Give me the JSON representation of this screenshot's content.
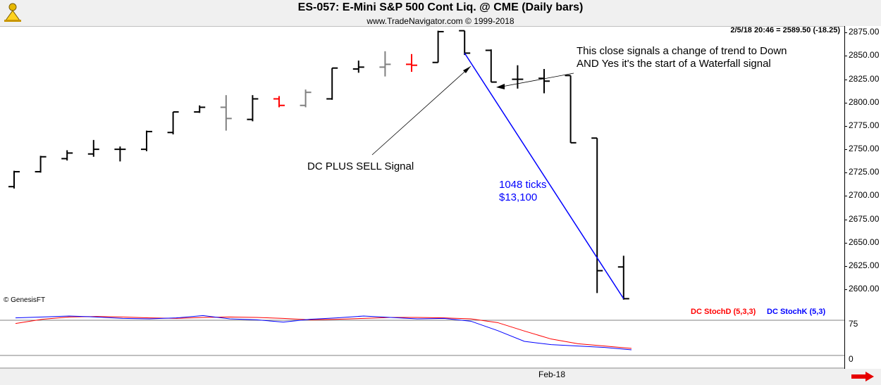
{
  "header": {
    "title": "ES-057:  E-Mini S&P 500 Cont Liq. @ CME  (Daily bars)",
    "subtitle": "www.TradeNavigator.com © 1999-2018"
  },
  "quote": "2/5/18 20:46 = 2589.50 (-18.25)",
  "copyright": "© GenesisFT",
  "annotations": {
    "trend_note_line1": "This close signals a change of trend to Down",
    "trend_note_line2": "AND Yes it's the start of a Waterfall signal",
    "signal_note": "DC PLUS SELL Signal",
    "ticks_note": "1048 ticks",
    "dollars_note": "$13,100"
  },
  "indicators": {
    "stochd_label": "DC StochD (5,3,3)",
    "stochk_label": "DC StochK (5,3)"
  },
  "colors": {
    "up_bar": "#000000",
    "signal_bar": "#ff0000",
    "neutral_bar": "#808080",
    "stochd": "#ff0000",
    "stochk": "#0000ff",
    "trend_line": "#0000ff"
  },
  "chart_data": [
    {
      "type": "ohlc",
      "title": "ES-057:  E-Mini S&P 500 Cont Liq. @ CME  (Daily bars)",
      "ylim": [
        2582,
        2882
      ],
      "yticks": [
        2600,
        2625,
        2650,
        2675,
        2700,
        2725,
        2750,
        2775,
        2800,
        2825,
        2850,
        2875
      ],
      "ytick_labels": [
        "2600.00",
        "2625.00",
        "2650.00",
        "2675.00",
        "2700.00",
        "2725.00",
        "2750.00",
        "2775.00",
        "2800.00",
        "2825.00",
        "2850.00",
        "2875.00"
      ],
      "x_labels": [
        "Feb-18"
      ],
      "bars": [
        {
          "o": 2710,
          "h": 2727,
          "l": 2708,
          "c": 2726,
          "color": "black"
        },
        {
          "o": 2726,
          "h": 2743,
          "l": 2725,
          "c": 2742,
          "color": "black"
        },
        {
          "o": 2740,
          "h": 2749,
          "l": 2738,
          "c": 2746,
          "color": "black"
        },
        {
          "o": 2745,
          "h": 2760,
          "l": 2742,
          "c": 2750,
          "color": "black"
        },
        {
          "o": 2750,
          "h": 2753,
          "l": 2737,
          "c": 2750,
          "color": "black"
        },
        {
          "o": 2750,
          "h": 2770,
          "l": 2748,
          "c": 2769,
          "color": "black"
        },
        {
          "o": 2768,
          "h": 2790,
          "l": 2766,
          "c": 2790,
          "color": "black"
        },
        {
          "o": 2790,
          "h": 2797,
          "l": 2789,
          "c": 2795,
          "color": "black"
        },
        {
          "o": 2795,
          "h": 2808,
          "l": 2770,
          "c": 2783,
          "color": "gray"
        },
        {
          "o": 2782,
          "h": 2808,
          "l": 2780,
          "c": 2804,
          "color": "black"
        },
        {
          "o": 2804,
          "h": 2807,
          "l": 2795,
          "c": 2797,
          "color": "red"
        },
        {
          "o": 2797,
          "h": 2814,
          "l": 2795,
          "c": 2811,
          "color": "gray"
        },
        {
          "o": 2804,
          "h": 2837,
          "l": 2803,
          "c": 2837,
          "color": "black"
        },
        {
          "o": 2836,
          "h": 2845,
          "l": 2832,
          "c": 2838,
          "color": "black"
        },
        {
          "o": 2838,
          "h": 2855,
          "l": 2828,
          "c": 2841,
          "color": "gray"
        },
        {
          "o": 2841,
          "h": 2852,
          "l": 2833,
          "c": 2840,
          "color": "red"
        },
        {
          "o": 2843,
          "h": 2877,
          "l": 2843,
          "c": 2876,
          "color": "black"
        },
        {
          "o": 2877,
          "h": 2877,
          "l": 2851,
          "c": 2853,
          "color": "black"
        },
        {
          "o": 2856,
          "h": 2857,
          "l": 2822,
          "c": 2822,
          "color": "black"
        },
        {
          "o": 2825,
          "h": 2840,
          "l": 2815,
          "c": 2825,
          "color": "black"
        },
        {
          "o": 2826,
          "h": 2836,
          "l": 2810,
          "c": 2823,
          "color": "black"
        },
        {
          "o": 2829,
          "h": 2829,
          "l": 2757,
          "c": 2757,
          "color": "black"
        },
        {
          "o": 2762,
          "h": 2762,
          "l": 2596,
          "c": 2620,
          "color": "black"
        },
        {
          "o": 2624,
          "h": 2636,
          "l": 2589,
          "c": 2590,
          "color": "black"
        }
      ],
      "trend_line": {
        "from": 2853,
        "to": 2590
      }
    },
    {
      "type": "line",
      "ylim": [
        0,
        100
      ],
      "yticks": [
        0,
        75
      ],
      "ytick_labels": [
        "0",
        "75"
      ],
      "series": [
        {
          "name": "DC StochD (5,3,3)",
          "color": "red",
          "values": [
            68,
            77,
            82,
            83,
            82,
            80,
            79,
            81,
            82,
            81,
            79,
            76,
            77,
            79,
            81,
            81,
            80,
            78,
            70,
            52,
            35,
            25,
            20,
            15
          ]
        },
        {
          "name": "DC StochK (5,3)",
          "color": "blue",
          "values": [
            80,
            82,
            84,
            82,
            79,
            78,
            80,
            85,
            78,
            76,
            71,
            77,
            80,
            84,
            81,
            78,
            79,
            73,
            53,
            30,
            23,
            20,
            17,
            12
          ]
        }
      ]
    }
  ]
}
